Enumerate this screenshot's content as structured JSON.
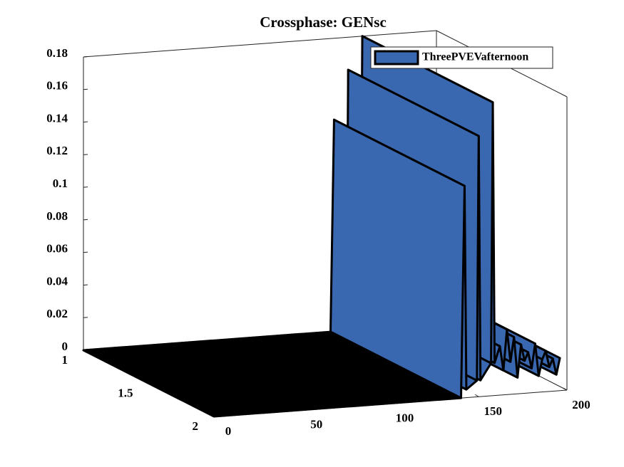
{
  "chart_data": {
    "type": "ribbon3d",
    "title": "Crossphase: GENsc",
    "legend": {
      "position": "top-right"
    },
    "series": [
      {
        "name": "ThreePVEVafternoon",
        "color": "#3a68b0",
        "x": [
          0,
          2,
          4,
          6,
          8,
          10,
          12,
          14,
          16,
          18,
          20,
          22,
          24,
          26,
          28,
          30,
          32,
          34,
          36,
          38,
          40,
          42,
          44,
          46,
          48,
          50,
          52,
          54,
          56,
          58,
          60,
          62,
          64,
          66,
          68,
          70,
          72,
          74,
          76,
          78,
          80,
          82,
          84,
          86,
          88,
          90,
          92,
          94,
          96,
          98,
          100,
          102,
          104,
          106,
          108,
          110,
          112,
          114,
          116,
          118,
          120,
          122,
          124,
          126,
          128,
          130,
          132,
          134,
          136,
          138,
          140,
          142,
          143,
          149,
          150,
          151,
          157,
          158,
          159,
          162,
          164,
          166,
          168,
          170,
          172,
          174,
          176,
          178,
          180,
          182,
          184,
          186,
          188,
          190,
          192,
          194,
          196
        ],
        "values": [
          0,
          0,
          0,
          0,
          0,
          0,
          0,
          0,
          0,
          0,
          0,
          0,
          0,
          0,
          0,
          0,
          0,
          0,
          0,
          0,
          0,
          0,
          0,
          0,
          0,
          0,
          0,
          0,
          0,
          0,
          0,
          0,
          0,
          0,
          0,
          0,
          0,
          0,
          0,
          0,
          0,
          0,
          0,
          0,
          0,
          0,
          0,
          0,
          0,
          0,
          0,
          0,
          0,
          0,
          0,
          0,
          0,
          0,
          0,
          0,
          0,
          0,
          0,
          0,
          0,
          0,
          0,
          0,
          0,
          0,
          0,
          0.13,
          0.005,
          0.01,
          0.16,
          0.01,
          0.02,
          0.18,
          0.02,
          0.03,
          0.015,
          0.04,
          0.02,
          0.035,
          0.01,
          0.03,
          0.02,
          0.025,
          0.015,
          0.03,
          0.01,
          0.02,
          0.025,
          0.015,
          0.02,
          0.01,
          0.02
        ]
      }
    ],
    "xlim": [
      0,
      200
    ],
    "xticks": [
      0,
      50,
      100,
      150,
      200
    ],
    "ylim": [
      1,
      2
    ],
    "yticks": [
      1,
      1.5,
      2
    ],
    "zlim": [
      0,
      0.18
    ],
    "zticks": [
      0,
      0.02,
      0.04,
      0.06,
      0.08,
      0.1,
      0.12,
      0.14,
      0.16,
      0.18
    ]
  }
}
